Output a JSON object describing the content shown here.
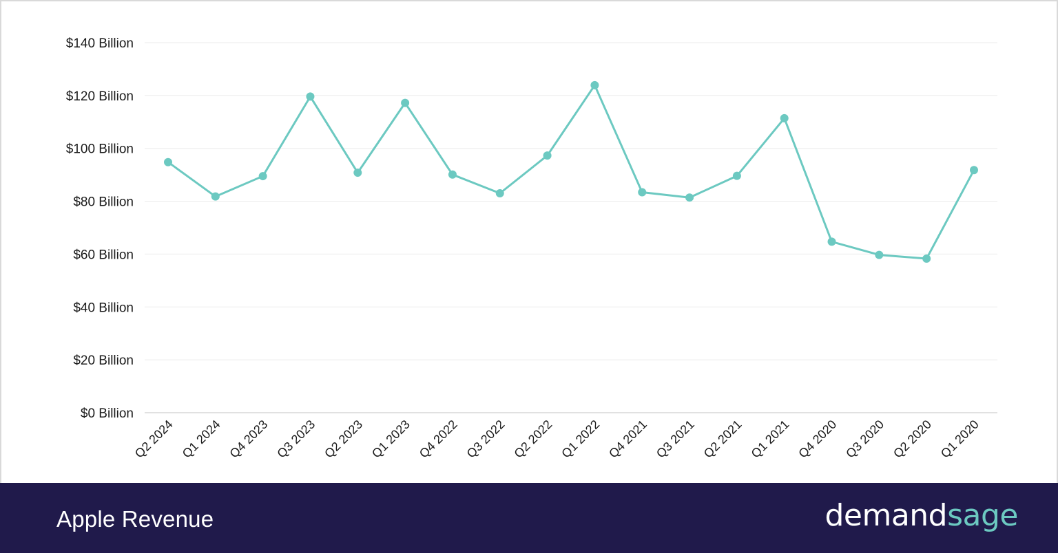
{
  "chart_data": {
    "type": "line",
    "title": "Apple Revenue",
    "categories": [
      "Q2 2024",
      "Q1 2024",
      "Q4 2023",
      "Q3 2023",
      "Q2 2023",
      "Q1 2023",
      "Q4 2022",
      "Q3 2022",
      "Q2 2022",
      "Q1 2022",
      "Q4 2021",
      "Q3 2021",
      "Q2 2021",
      "Q1 2021",
      "Q4 2020",
      "Q3 2020",
      "Q2 2020",
      "Q1 2020"
    ],
    "series": [
      {
        "values": [
          94.8,
          81.8,
          89.5,
          119.6,
          90.8,
          117.2,
          90.1,
          83.0,
          97.3,
          123.9,
          83.4,
          81.4,
          89.6,
          111.4,
          64.7,
          59.7,
          58.3,
          91.8
        ],
        "color": "#6cc9c1"
      }
    ],
    "ylim": [
      0,
      140
    ],
    "yticks": [
      {
        "value": 140,
        "label": "$140 Billion"
      },
      {
        "value": 120,
        "label": "$120 Billion"
      },
      {
        "value": 100,
        "label": "$100 Billion"
      },
      {
        "value": 80,
        "label": "$80 Billion"
      },
      {
        "value": 60,
        "label": "$60 Billion"
      },
      {
        "value": 40,
        "label": "$40 Billion"
      },
      {
        "value": 20,
        "label": "$20 Billion"
      },
      {
        "value": 0,
        "label": "$0 Billion"
      }
    ],
    "xlabel": "",
    "ylabel": "",
    "grid": true,
    "legend": "none"
  },
  "footer": {
    "title": "Apple Revenue",
    "brand_part1": "demand",
    "brand_part2": "sage",
    "background_color": "#201a4b",
    "brand_accent_color": "#6cc9c1"
  }
}
